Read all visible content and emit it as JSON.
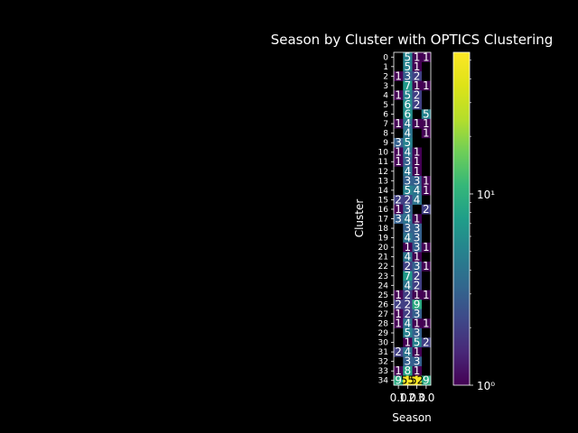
{
  "chart_data": {
    "type": "heatmap",
    "title": "Season by Cluster with OPTICS Clustering",
    "xlabel": "Season",
    "ylabel": "Cluster",
    "x_tick_labels": [
      "0.0",
      "1.0",
      "2.0",
      "3.0"
    ],
    "y_tick_labels": [
      "0",
      "1",
      "2",
      "3",
      "4",
      "5",
      "6",
      "7",
      "8",
      "9",
      "10",
      "11",
      "12",
      "13",
      "14",
      "15",
      "16",
      "17",
      "18",
      "19",
      "20",
      "21",
      "22",
      "23",
      "24",
      "25",
      "26",
      "27",
      "28",
      "29",
      "30",
      "31",
      "32",
      "33",
      "34"
    ],
    "values": [
      [
        null,
        5,
        1,
        1
      ],
      [
        null,
        5,
        1,
        null
      ],
      [
        1,
        3,
        2,
        null
      ],
      [
        null,
        7,
        1,
        1
      ],
      [
        1,
        5,
        2,
        null
      ],
      [
        null,
        6,
        2,
        null
      ],
      [
        null,
        6,
        null,
        5
      ],
      [
        1,
        4,
        1,
        1
      ],
      [
        null,
        4,
        null,
        1
      ],
      [
        3,
        5,
        null,
        null
      ],
      [
        1,
        4,
        1,
        null
      ],
      [
        1,
        3,
        1,
        null
      ],
      [
        null,
        4,
        1,
        null
      ],
      [
        null,
        3,
        3,
        1
      ],
      [
        null,
        5,
        4,
        1
      ],
      [
        2,
        2,
        4,
        null
      ],
      [
        1,
        3,
        null,
        2
      ],
      [
        3,
        4,
        1,
        null
      ],
      [
        null,
        3,
        3,
        null
      ],
      [
        null,
        4,
        3,
        null
      ],
      [
        null,
        1,
        3,
        1
      ],
      [
        null,
        4,
        1,
        null
      ],
      [
        null,
        2,
        3,
        1
      ],
      [
        null,
        7,
        2,
        null
      ],
      [
        null,
        4,
        2,
        null
      ],
      [
        1,
        2,
        1,
        1
      ],
      [
        2,
        2,
        9,
        null
      ],
      [
        1,
        2,
        3,
        null
      ],
      [
        1,
        4,
        1,
        1
      ],
      [
        null,
        5,
        3,
        null
      ],
      [
        null,
        1,
        5,
        2
      ],
      [
        2,
        4,
        1,
        null
      ],
      [
        null,
        3,
        3,
        null
      ],
      [
        1,
        8,
        1,
        null
      ],
      [
        9,
        55,
        52,
        9
      ]
    ],
    "colorbar": {
      "scale": "log",
      "min": 1,
      "max": 55,
      "major_ticks": [
        {
          "value": 1,
          "label": "10⁰"
        },
        {
          "value": 10,
          "label": "10¹"
        }
      ],
      "colormap": "viridis"
    }
  }
}
